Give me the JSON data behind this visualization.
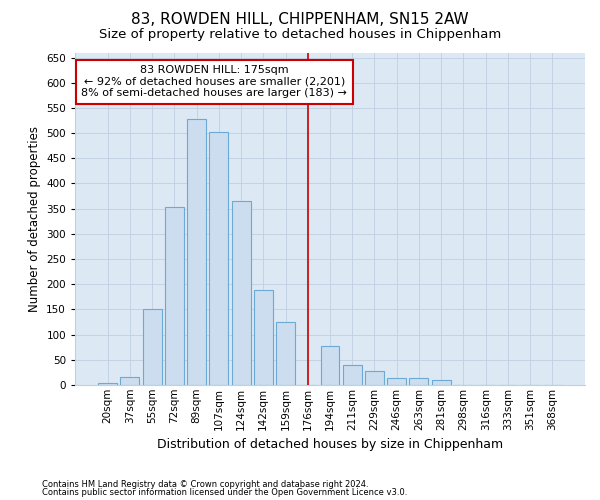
{
  "title1": "83, ROWDEN HILL, CHIPPENHAM, SN15 2AW",
  "title2": "Size of property relative to detached houses in Chippenham",
  "xlabel": "Distribution of detached houses by size in Chippenham",
  "ylabel": "Number of detached properties",
  "categories": [
    "20sqm",
    "37sqm",
    "55sqm",
    "72sqm",
    "89sqm",
    "107sqm",
    "124sqm",
    "142sqm",
    "159sqm",
    "176sqm",
    "194sqm",
    "211sqm",
    "229sqm",
    "246sqm",
    "263sqm",
    "281sqm",
    "298sqm",
    "316sqm",
    "333sqm",
    "351sqm",
    "368sqm"
  ],
  "values": [
    3,
    15,
    150,
    353,
    528,
    502,
    365,
    188,
    125,
    0,
    78,
    40,
    28,
    14,
    14,
    10,
    0,
    0,
    0,
    0,
    0
  ],
  "bar_color": "#ccddef",
  "bar_edge_color": "#6aaad4",
  "vline_color": "#cc0000",
  "vline_index": 9,
  "annotation_line1": "83 ROWDEN HILL: 175sqm",
  "annotation_line2": "← 92% of detached houses are smaller (2,201)",
  "annotation_line3": "8% of semi-detached houses are larger (183) →",
  "annotation_box_facecolor": "#ffffff",
  "annotation_box_edgecolor": "#cc0000",
  "ylim": [
    0,
    660
  ],
  "yticks": [
    0,
    50,
    100,
    150,
    200,
    250,
    300,
    350,
    400,
    450,
    500,
    550,
    600,
    650
  ],
  "background_color": "#dce8f4",
  "grid_color": "#c0d0e0",
  "footer1": "Contains HM Land Registry data © Crown copyright and database right 2024.",
  "footer2": "Contains public sector information licensed under the Open Government Licence v3.0.",
  "title_fontsize": 11,
  "subtitle_fontsize": 9.5,
  "axis_label_fontsize": 9,
  "ylabel_fontsize": 8.5,
  "tick_fontsize": 7.5,
  "footer_fontsize": 6,
  "annot_fontsize": 8
}
